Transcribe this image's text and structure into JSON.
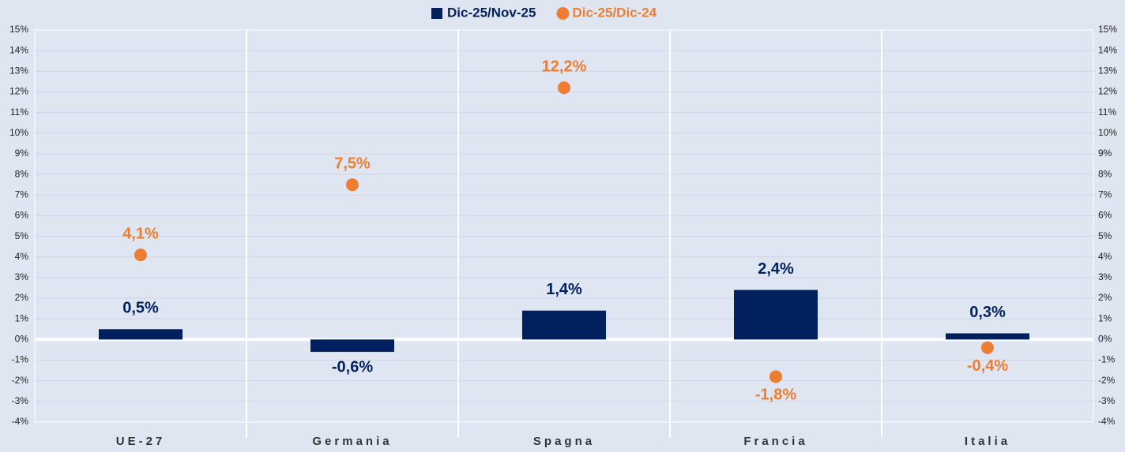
{
  "chart_data": {
    "type": "bar",
    "categories": [
      "UE-27",
      "Germania",
      "Spagna",
      "Francia",
      "Italia"
    ],
    "series": [
      {
        "name": "Dic-25/Nov-25",
        "type": "bar",
        "color": "#00215e",
        "values": [
          0.5,
          -0.6,
          1.4,
          2.4,
          0.3
        ],
        "value_labels": [
          "0,5%",
          "-0,6%",
          "1,4%",
          "2,4%",
          "0,3%"
        ]
      },
      {
        "name": "Dic-25/Dic-24",
        "type": "scatter",
        "color": "#ed7d31",
        "values": [
          4.1,
          7.5,
          12.2,
          -1.8,
          -0.4
        ],
        "value_labels": [
          "4,1%",
          "7,5%",
          "12,2%",
          "-1,8%",
          "-0,4%"
        ]
      }
    ],
    "ylim": [
      -4,
      15
    ],
    "yticks": [
      {
        "value": -4,
        "label": "-4%"
      },
      {
        "value": -3,
        "label": "-3%"
      },
      {
        "value": -2,
        "label": "-2%"
      },
      {
        "value": -1,
        "label": "-1%"
      },
      {
        "value": 0,
        "label": "0%"
      },
      {
        "value": 1,
        "label": "1%"
      },
      {
        "value": 2,
        "label": "2%"
      },
      {
        "value": 3,
        "label": "3%"
      },
      {
        "value": 4,
        "label": "4%"
      },
      {
        "value": 5,
        "label": "5%"
      },
      {
        "value": 6,
        "label": "6%"
      },
      {
        "value": 7,
        "label": "7%"
      },
      {
        "value": 8,
        "label": "8%"
      },
      {
        "value": 9,
        "label": "9%"
      },
      {
        "value": 10,
        "label": "10%"
      },
      {
        "value": 11,
        "label": "11%"
      },
      {
        "value": 12,
        "label": "12%"
      },
      {
        "value": 13,
        "label": "13%"
      },
      {
        "value": 14,
        "label": "14%"
      },
      {
        "value": 15,
        "label": "15%"
      }
    ],
    "y2lim": [
      -4,
      15
    ],
    "y2ticks": [
      {
        "value": -4,
        "label": "-4%"
      },
      {
        "value": -3,
        "label": "-3%"
      },
      {
        "value": -2,
        "label": "-2%"
      },
      {
        "value": -1,
        "label": "-1%"
      },
      {
        "value": 0,
        "label": "0%"
      },
      {
        "value": 1,
        "label": "1%"
      },
      {
        "value": 2,
        "label": "2%"
      },
      {
        "value": 3,
        "label": "3%"
      },
      {
        "value": 4,
        "label": "4%"
      },
      {
        "value": 5,
        "label": "5%"
      },
      {
        "value": 6,
        "label": "6%"
      },
      {
        "value": 7,
        "label": "7%"
      },
      {
        "value": 8,
        "label": "8%"
      },
      {
        "value": 9,
        "label": "9%"
      },
      {
        "value": 10,
        "label": "10%"
      },
      {
        "value": 11,
        "label": "11%"
      },
      {
        "value": 12,
        "label": "12%"
      },
      {
        "value": 13,
        "label": "13%"
      },
      {
        "value": 14,
        "label": "14%"
      },
      {
        "value": 15,
        "label": "15%"
      }
    ],
    "grid": true,
    "legend": "top"
  }
}
